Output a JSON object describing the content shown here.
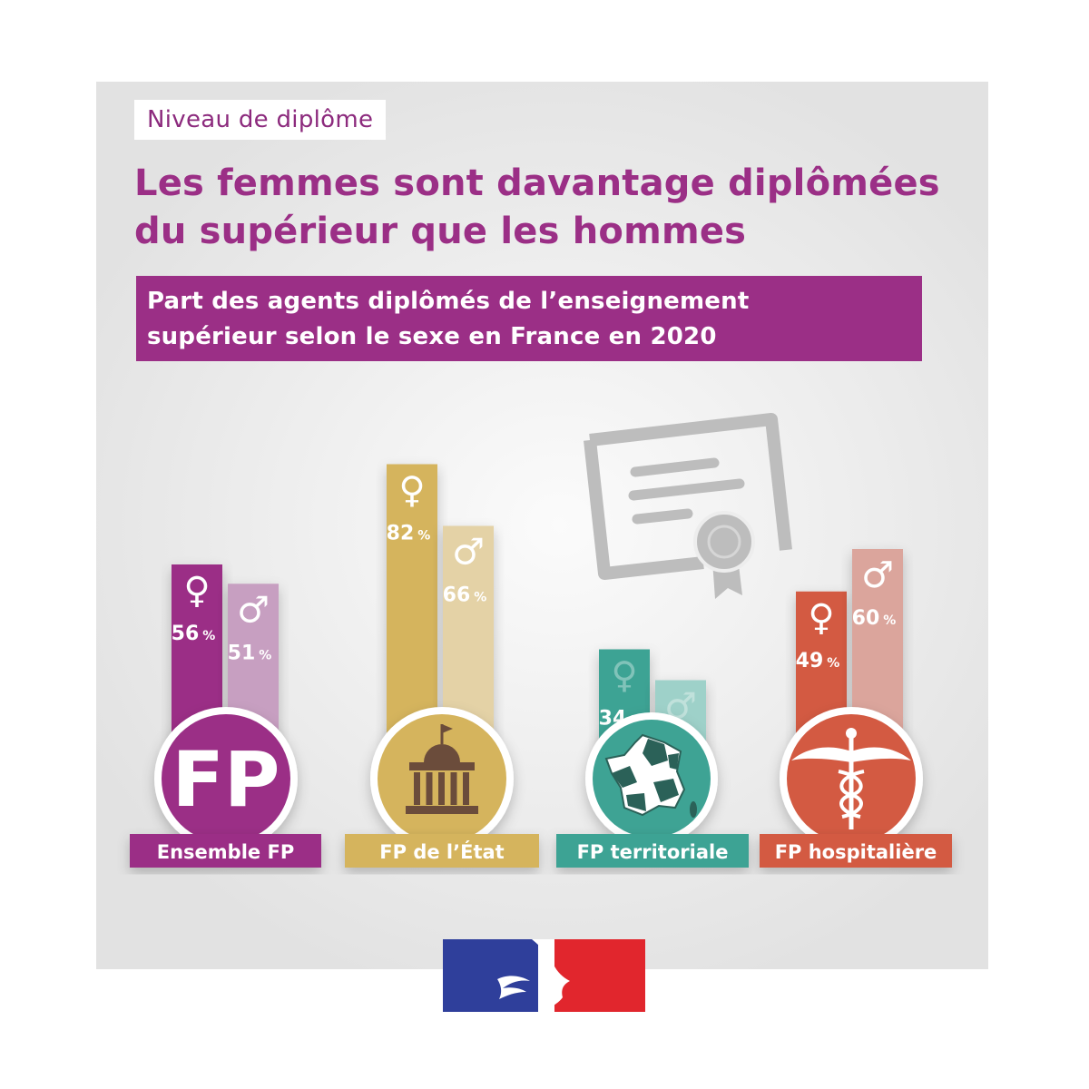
{
  "header": {
    "tag": "Niveau de diplôme",
    "title_line1": "Les femmes sont davantage diplômées",
    "title_line2": "du supérieur que les hommes",
    "subtitle_line1": "Part des agents diplômés de l’enseignement",
    "subtitle_line2": "supérieur selon le sexe en France en 2020"
  },
  "icons": {
    "female": "venus-icon",
    "male": "mars-icon",
    "certificate": "certificate-icon",
    "ensemble": "fp-monogram-icon",
    "etat": "government-building-icon",
    "territoriale": "france-map-icon",
    "hospitaliere": "caduceus-icon"
  },
  "emblem_text": {
    "fp": "FP"
  },
  "chart_data": {
    "type": "bar",
    "unit": "%",
    "categories": [
      "Ensemble FP",
      "FP de l’État",
      "FP territoriale",
      "FP hospitalière"
    ],
    "series": [
      {
        "symbol": "♀",
        "values": [
          56,
          82,
          34,
          49
        ]
      },
      {
        "symbol": "♂",
        "values": [
          51,
          66,
          26,
          60
        ]
      }
    ],
    "colors": {
      "Ensemble FP": {
        "female": "#9b2f86",
        "male": "#c79fc1",
        "label": "#9b2f86"
      },
      "FP de l’État": {
        "female": "#d5b45d",
        "male": "#e4d2a6",
        "label": "#d5b45d"
      },
      "FP territoriale": {
        "female": "#3ea394",
        "male": "#9ed1c9",
        "label": "#3ea394"
      },
      "FP hospitalière": {
        "female": "#d35a42",
        "male": "#dba59c",
        "label": "#d35a42"
      }
    }
  }
}
